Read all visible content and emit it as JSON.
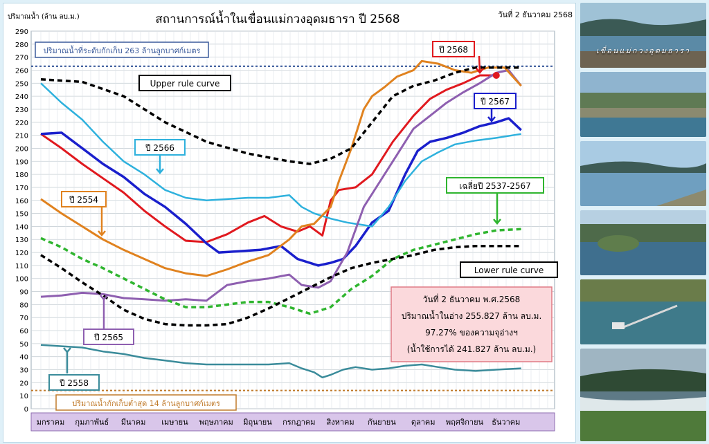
{
  "header": {
    "unit_label": "ปริมาณน้ำ (ล้าน ลบ.ม.)",
    "title": "สถานการณ์น้ำในเขื่อนแม่กวงอุดมธารา  ปี  2568",
    "date": "วันที่ 2 ธันวาคม 2568"
  },
  "info_box": {
    "line1": "วันที่ 2 ธันวาคม พ.ศ.2568",
    "line2": "ปริมาณน้ำในอ่าง 255.827 ล้าน ลบ.ม.",
    "line3": "97.27% ของความจุอ่างฯ",
    "line4": "(น้ำใช้การได้ 241.827 ล้าน ลบ.ม.)"
  },
  "photos": {
    "caption": "เขื่อนแม่กวงอุดมธารา"
  },
  "colors": {
    "y2568": "#e0191f",
    "y2567": "#1a1fcc",
    "y2566": "#2eb1dd",
    "y2565": "#8e5fb0",
    "y2558": "#3a8b9a",
    "y2554": "#e0821f",
    "avg": "#2fb52f",
    "rule": "#000000",
    "capacity": "#3a5a9b",
    "min": "#c07a2a"
  },
  "chart_data": {
    "type": "line",
    "x": [
      "มกราคม",
      "กุมภาพันธ์",
      "มีนาคม",
      "เมษายน",
      "พฤษภาคม",
      "มิถุนายน",
      "กรกฎาคม",
      "สิงหาคม",
      "กันยายน",
      "ตุลาคม",
      "พฤศจิกายน",
      "ธันวาคม"
    ],
    "xlabel": "",
    "ylabel": "ปริมาณน้ำ (ล้าน ลบ.ม.)",
    "ylim": [
      0,
      290
    ],
    "yticks": [
      0,
      10,
      20,
      30,
      40,
      50,
      60,
      70,
      80,
      90,
      100,
      110,
      120,
      130,
      140,
      150,
      160,
      170,
      180,
      190,
      200,
      210,
      220,
      230,
      240,
      250,
      260,
      270,
      280,
      290
    ],
    "grid": true,
    "reference_lines": [
      {
        "label": "ปริมาณน้ำที่ระดับกักเก็บ 263 ล้านลูกบาศก์เมตร",
        "value": 263
      },
      {
        "label": "ปริมาณน้ำกักเก็บต่ำสุด 14 ล้านลูกบาศก์เมตร",
        "value": 14
      }
    ],
    "series": [
      {
        "name": "ปี 2568",
        "points": [
          [
            0,
            211
          ],
          [
            0.5,
            200
          ],
          [
            1,
            188
          ],
          [
            1.5,
            177
          ],
          [
            2,
            166
          ],
          [
            2.5,
            152
          ],
          [
            3,
            140
          ],
          [
            3.5,
            129
          ],
          [
            4,
            128
          ],
          [
            4.5,
            134
          ],
          [
            5,
            143
          ],
          [
            5.4,
            148
          ],
          [
            5.8,
            140
          ],
          [
            6.2,
            136
          ],
          [
            6.5,
            140
          ],
          [
            6.8,
            133
          ],
          [
            7,
            160
          ],
          [
            7.2,
            168
          ],
          [
            7.6,
            170
          ],
          [
            8,
            180
          ],
          [
            8.5,
            205
          ],
          [
            9,
            225
          ],
          [
            9.4,
            238
          ],
          [
            9.8,
            245
          ],
          [
            10.2,
            250
          ],
          [
            10.6,
            256
          ],
          [
            11,
            256
          ]
        ]
      },
      {
        "name": "ปี 2567",
        "points": [
          [
            0,
            211
          ],
          [
            0.5,
            212
          ],
          [
            1,
            200
          ],
          [
            1.5,
            188
          ],
          [
            2,
            178
          ],
          [
            2.5,
            165
          ],
          [
            3,
            155
          ],
          [
            3.5,
            142
          ],
          [
            4,
            127
          ],
          [
            4.3,
            120
          ],
          [
            4.8,
            121
          ],
          [
            5.3,
            122
          ],
          [
            5.8,
            125
          ],
          [
            6.2,
            115
          ],
          [
            6.7,
            110
          ],
          [
            7,
            112
          ],
          [
            7.3,
            115
          ],
          [
            7.6,
            125
          ],
          [
            8,
            143
          ],
          [
            8.4,
            152
          ],
          [
            8.8,
            180
          ],
          [
            9.1,
            198
          ],
          [
            9.4,
            205
          ],
          [
            9.8,
            208
          ],
          [
            10.2,
            212
          ],
          [
            10.6,
            217
          ],
          [
            11,
            220
          ],
          [
            11.3,
            223
          ],
          [
            11.6,
            214
          ]
        ]
      },
      {
        "name": "ปี 2566",
        "points": [
          [
            0,
            250
          ],
          [
            0.5,
            235
          ],
          [
            1,
            222
          ],
          [
            1.5,
            205
          ],
          [
            2,
            190
          ],
          [
            2.5,
            180
          ],
          [
            3,
            168
          ],
          [
            3.5,
            162
          ],
          [
            4,
            160
          ],
          [
            4.5,
            161
          ],
          [
            5,
            162
          ],
          [
            5.5,
            162
          ],
          [
            6,
            164
          ],
          [
            6.3,
            155
          ],
          [
            6.6,
            150
          ],
          [
            7,
            146
          ],
          [
            7.4,
            143
          ],
          [
            8,
            140
          ],
          [
            8.4,
            155
          ],
          [
            8.8,
            175
          ],
          [
            9.2,
            190
          ],
          [
            9.6,
            197
          ],
          [
            10,
            203
          ],
          [
            10.5,
            206
          ],
          [
            11,
            208
          ],
          [
            11.6,
            211
          ]
        ]
      },
      {
        "name": "ปี 2565",
        "points": [
          [
            0,
            86
          ],
          [
            0.5,
            87
          ],
          [
            1,
            89
          ],
          [
            1.5,
            88
          ],
          [
            2,
            85
          ],
          [
            2.5,
            84
          ],
          [
            3,
            83
          ],
          [
            3.5,
            84
          ],
          [
            4,
            83
          ],
          [
            4.5,
            95
          ],
          [
            5,
            98
          ],
          [
            5.5,
            100
          ],
          [
            6,
            103
          ],
          [
            6.3,
            95
          ],
          [
            6.7,
            93
          ],
          [
            7,
            98
          ],
          [
            7.4,
            120
          ],
          [
            7.8,
            155
          ],
          [
            8.2,
            175
          ],
          [
            8.6,
            195
          ],
          [
            9,
            215
          ],
          [
            9.4,
            225
          ],
          [
            9.8,
            235
          ],
          [
            10.2,
            243
          ],
          [
            10.6,
            250
          ],
          [
            11,
            258
          ],
          [
            11.3,
            260
          ],
          [
            11.6,
            248
          ]
        ]
      },
      {
        "name": "ปี 2558",
        "points": [
          [
            0,
            49
          ],
          [
            0.5,
            48
          ],
          [
            1,
            47
          ],
          [
            1.5,
            44
          ],
          [
            2,
            42
          ],
          [
            2.5,
            39
          ],
          [
            3,
            37
          ],
          [
            3.5,
            35
          ],
          [
            4,
            34
          ],
          [
            4.5,
            34
          ],
          [
            5,
            34
          ],
          [
            5.5,
            34
          ],
          [
            6,
            35
          ],
          [
            6.3,
            31
          ],
          [
            6.6,
            28
          ],
          [
            6.8,
            24
          ],
          [
            7,
            26
          ],
          [
            7.3,
            30
          ],
          [
            7.6,
            32
          ],
          [
            8,
            30
          ],
          [
            8.4,
            31
          ],
          [
            8.8,
            33
          ],
          [
            9.2,
            34
          ],
          [
            9.6,
            32
          ],
          [
            10,
            30
          ],
          [
            10.5,
            29
          ],
          [
            11,
            30
          ],
          [
            11.6,
            31
          ]
        ]
      },
      {
        "name": "ปี 2554",
        "points": [
          [
            0,
            161
          ],
          [
            0.5,
            150
          ],
          [
            1,
            140
          ],
          [
            1.5,
            130
          ],
          [
            2,
            122
          ],
          [
            2.5,
            115
          ],
          [
            3,
            108
          ],
          [
            3.5,
            104
          ],
          [
            4,
            102
          ],
          [
            4.5,
            107
          ],
          [
            5,
            113
          ],
          [
            5.5,
            118
          ],
          [
            6,
            130
          ],
          [
            6.3,
            140
          ],
          [
            6.6,
            142
          ],
          [
            7,
            155
          ],
          [
            7.2,
            175
          ],
          [
            7.5,
            200
          ],
          [
            7.8,
            230
          ],
          [
            8,
            240
          ],
          [
            8.3,
            247
          ],
          [
            8.6,
            255
          ],
          [
            9,
            260
          ],
          [
            9.2,
            267
          ],
          [
            9.6,
            265
          ],
          [
            10,
            260
          ],
          [
            10.4,
            258
          ],
          [
            10.8,
            262
          ],
          [
            11.2,
            262
          ],
          [
            11.6,
            248
          ]
        ]
      },
      {
        "name": "เฉลี่ยปี 2537-2567",
        "points": [
          [
            0,
            131
          ],
          [
            0.5,
            124
          ],
          [
            1,
            115
          ],
          [
            1.5,
            108
          ],
          [
            2,
            100
          ],
          [
            2.5,
            92
          ],
          [
            3,
            84
          ],
          [
            3.5,
            78
          ],
          [
            4,
            78
          ],
          [
            4.5,
            80
          ],
          [
            5,
            82
          ],
          [
            5.5,
            82
          ],
          [
            6,
            78
          ],
          [
            6.5,
            73
          ],
          [
            7,
            78
          ],
          [
            7.5,
            92
          ],
          [
            8,
            102
          ],
          [
            8.5,
            115
          ],
          [
            9,
            122
          ],
          [
            9.5,
            126
          ],
          [
            10,
            130
          ],
          [
            10.5,
            134
          ],
          [
            11,
            137
          ],
          [
            11.6,
            138
          ]
        ]
      },
      {
        "name": "Upper rule curve",
        "points": [
          [
            0,
            253
          ],
          [
            1,
            251
          ],
          [
            2,
            240
          ],
          [
            3,
            220
          ],
          [
            4,
            205
          ],
          [
            5,
            196
          ],
          [
            6,
            190
          ],
          [
            6.5,
            188
          ],
          [
            7,
            192
          ],
          [
            7.5,
            200
          ],
          [
            8,
            220
          ],
          [
            8.5,
            240
          ],
          [
            9,
            248
          ],
          [
            9.5,
            252
          ],
          [
            10,
            258
          ],
          [
            10.5,
            262
          ],
          [
            11,
            262
          ],
          [
            11.6,
            262
          ]
        ]
      },
      {
        "name": "Lower rule curve",
        "points": [
          [
            0,
            118
          ],
          [
            0.5,
            108
          ],
          [
            1,
            97
          ],
          [
            1.5,
            87
          ],
          [
            2,
            76
          ],
          [
            2.5,
            69
          ],
          [
            3,
            65
          ],
          [
            3.5,
            64
          ],
          [
            4,
            64
          ],
          [
            4.5,
            65
          ],
          [
            5,
            70
          ],
          [
            5.5,
            77
          ],
          [
            6,
            85
          ],
          [
            6.5,
            93
          ],
          [
            7,
            101
          ],
          [
            7.5,
            108
          ],
          [
            8,
            112
          ],
          [
            8.5,
            115
          ],
          [
            9,
            118
          ],
          [
            9.5,
            122
          ],
          [
            10,
            124
          ],
          [
            10.5,
            125
          ],
          [
            11,
            125
          ],
          [
            11.6,
            125
          ]
        ]
      }
    ],
    "labels": [
      "ปี 2568",
      "ปี 2567",
      "ปี 2566",
      "ปี 2565",
      "ปี 2558",
      "ปี 2554",
      "เฉลี่ยปี 2537-2567",
      "Upper rule curve",
      "Lower rule curve"
    ]
  }
}
